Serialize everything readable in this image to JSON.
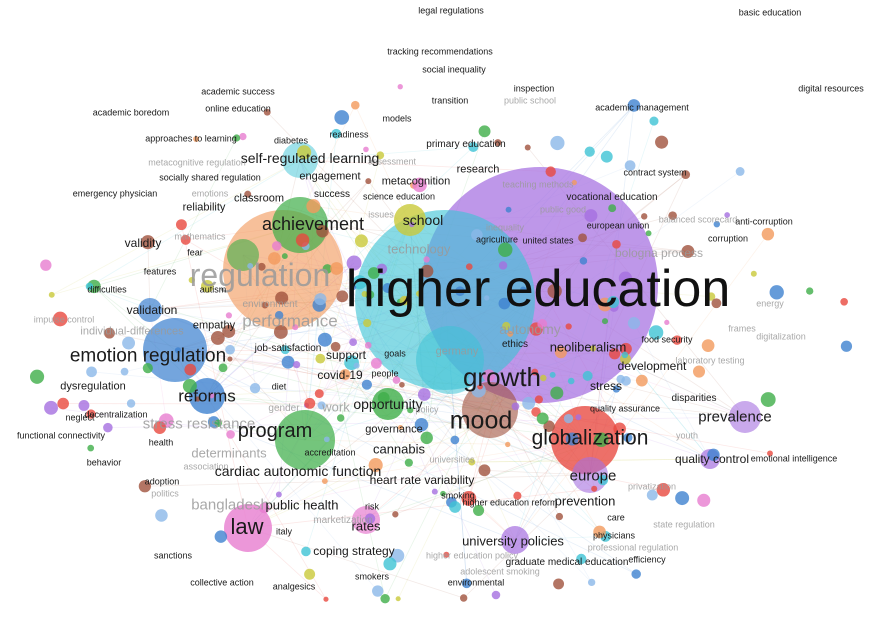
{
  "map": {
    "clusters": {
      "red": "#e8483f",
      "green": "#3fae49",
      "blue": "#3f82d0",
      "yellow": "#c9c93a",
      "purple": "#a56fe0",
      "cyan": "#3ec3d5",
      "orange": "#f29a5c",
      "brown": "#a0523d",
      "pink": "#e77dd0",
      "lightblue": "#8bb8e8",
      "grey": "#9a9a9a"
    },
    "terms": [
      {
        "label": "legal regulations",
        "cluster": "grey"
      },
      {
        "label": "basic education",
        "cluster": "grey"
      },
      {
        "label": "tracking recommendations",
        "cluster": "grey"
      },
      {
        "label": "social inequality",
        "cluster": "grey"
      },
      {
        "label": "digital resources",
        "cluster": "grey"
      },
      {
        "label": "academic success",
        "cluster": "grey"
      },
      {
        "label": "inspection",
        "cluster": "grey"
      },
      {
        "label": "public school",
        "cluster": "grey"
      },
      {
        "label": "transition",
        "cluster": "grey"
      },
      {
        "label": "online education",
        "cluster": "grey"
      },
      {
        "label": "academic management",
        "cluster": "grey"
      },
      {
        "label": "academic boredom",
        "cluster": "grey"
      },
      {
        "label": "models",
        "cluster": "grey"
      },
      {
        "label": "approaches to learning",
        "cluster": "grey"
      },
      {
        "label": "diabetes",
        "cluster": "grey"
      },
      {
        "label": "readiness",
        "cluster": "grey"
      },
      {
        "label": "primary education",
        "cluster": "grey"
      },
      {
        "label": "self-regulated learning",
        "cluster": "grey"
      },
      {
        "label": "metacognitive regulation",
        "cluster": "grey"
      },
      {
        "label": "assessment",
        "cluster": "grey"
      },
      {
        "label": "research",
        "cluster": "grey"
      },
      {
        "label": "socially shared regulation",
        "cluster": "grey"
      },
      {
        "label": "engagement",
        "cluster": "grey"
      },
      {
        "label": "metacognition",
        "cluster": "grey"
      },
      {
        "label": "teaching methods",
        "cluster": "grey"
      },
      {
        "label": "contract system",
        "cluster": "grey"
      },
      {
        "label": "emergency physician",
        "cluster": "grey"
      },
      {
        "label": "emotions",
        "cluster": "grey"
      },
      {
        "label": "success",
        "cluster": "grey"
      },
      {
        "label": "science education",
        "cluster": "grey"
      },
      {
        "label": "vocational education",
        "cluster": "grey"
      },
      {
        "label": "reliability",
        "cluster": "grey"
      },
      {
        "label": "classroom",
        "cluster": "grey"
      },
      {
        "label": "public good",
        "cluster": "grey"
      },
      {
        "label": "balanced scorecard",
        "cluster": "grey"
      },
      {
        "label": "anti-corruption",
        "cluster": "grey"
      },
      {
        "label": "achievement",
        "cluster": "grey"
      },
      {
        "label": "issues",
        "cluster": "grey"
      },
      {
        "label": "school",
        "cluster": "grey"
      },
      {
        "label": "inequality",
        "cluster": "grey"
      },
      {
        "label": "european union",
        "cluster": "grey"
      },
      {
        "label": "mathematics",
        "cluster": "grey"
      },
      {
        "label": "corruption",
        "cluster": "grey"
      },
      {
        "label": "validity",
        "cluster": "grey"
      },
      {
        "label": "agriculture",
        "cluster": "grey"
      },
      {
        "label": "united states",
        "cluster": "grey"
      },
      {
        "label": "technology",
        "cluster": "grey"
      },
      {
        "label": "fear",
        "cluster": "grey"
      },
      {
        "label": "bologna process",
        "cluster": "grey"
      },
      {
        "label": "features",
        "cluster": "grey"
      },
      {
        "label": "regulation",
        "cluster": "grey"
      },
      {
        "label": "higher education",
        "cluster": "grey"
      },
      {
        "label": "difficulties",
        "cluster": "grey"
      },
      {
        "label": "autism",
        "cluster": "grey"
      },
      {
        "label": "energy",
        "cluster": "grey"
      },
      {
        "label": "environment",
        "cluster": "grey"
      },
      {
        "label": "validation",
        "cluster": "grey"
      },
      {
        "label": "impulse control",
        "cluster": "grey"
      },
      {
        "label": "performance",
        "cluster": "grey"
      },
      {
        "label": "autonomy",
        "cluster": "grey"
      },
      {
        "label": "individual-differences",
        "cluster": "grey"
      },
      {
        "label": "empathy",
        "cluster": "grey"
      },
      {
        "label": "frames",
        "cluster": "grey"
      },
      {
        "label": "digitalization",
        "cluster": "grey"
      },
      {
        "label": "food security",
        "cluster": "grey"
      },
      {
        "label": "ethics",
        "cluster": "grey"
      },
      {
        "label": "neoliberalism",
        "cluster": "grey"
      },
      {
        "label": "job-satisfaction",
        "cluster": "grey"
      },
      {
        "label": "emotion regulation",
        "cluster": "grey"
      },
      {
        "label": "support",
        "cluster": "grey"
      },
      {
        "label": "goals",
        "cluster": "grey"
      },
      {
        "label": "germany",
        "cluster": "grey"
      },
      {
        "label": "laboratory testing",
        "cluster": "grey"
      },
      {
        "label": "development",
        "cluster": "grey"
      },
      {
        "label": "covid-19",
        "cluster": "grey"
      },
      {
        "label": "people",
        "cluster": "grey"
      },
      {
        "label": "dysregulation",
        "cluster": "grey"
      },
      {
        "label": "diet",
        "cluster": "grey"
      },
      {
        "label": "growth",
        "cluster": "grey"
      },
      {
        "label": "stress",
        "cluster": "grey"
      },
      {
        "label": "reforms",
        "cluster": "grey"
      },
      {
        "label": "disparities",
        "cluster": "grey"
      },
      {
        "label": "gender",
        "cluster": "grey"
      },
      {
        "label": "work",
        "cluster": "grey"
      },
      {
        "label": "opportunity",
        "cluster": "grey"
      },
      {
        "label": "policy",
        "cluster": "grey"
      },
      {
        "label": "mood",
        "cluster": "grey"
      },
      {
        "label": "neglect",
        "cluster": "grey"
      },
      {
        "label": "decentralization",
        "cluster": "grey"
      },
      {
        "label": "quality assurance",
        "cluster": "grey"
      },
      {
        "label": "prevalence",
        "cluster": "grey"
      },
      {
        "label": "stress resistance",
        "cluster": "grey"
      },
      {
        "label": "functional connectivity",
        "cluster": "grey"
      },
      {
        "label": "health",
        "cluster": "grey"
      },
      {
        "label": "program",
        "cluster": "grey"
      },
      {
        "label": "governance",
        "cluster": "grey"
      },
      {
        "label": "globalization",
        "cluster": "grey"
      },
      {
        "label": "youth",
        "cluster": "grey"
      },
      {
        "label": "cannabis",
        "cluster": "grey"
      },
      {
        "label": "accreditation",
        "cluster": "grey"
      },
      {
        "label": "quality control",
        "cluster": "grey"
      },
      {
        "label": "emotional intelligence",
        "cluster": "grey"
      },
      {
        "label": "behavior",
        "cluster": "grey"
      },
      {
        "label": "determinants",
        "cluster": "grey"
      },
      {
        "label": "association",
        "cluster": "grey"
      },
      {
        "label": "universities",
        "cluster": "grey"
      },
      {
        "label": "cardiac autonomic function",
        "cluster": "grey"
      },
      {
        "label": "europe",
        "cluster": "grey"
      },
      {
        "label": "adoption",
        "cluster": "grey"
      },
      {
        "label": "heart rate variability",
        "cluster": "grey"
      },
      {
        "label": "privatization",
        "cluster": "grey"
      },
      {
        "label": "politics",
        "cluster": "grey"
      },
      {
        "label": "smoking",
        "cluster": "grey"
      },
      {
        "label": "prevention",
        "cluster": "grey"
      },
      {
        "label": "bangladesh",
        "cluster": "grey"
      },
      {
        "label": "public health",
        "cluster": "grey"
      },
      {
        "label": "higher education reform",
        "cluster": "grey"
      },
      {
        "label": "risk",
        "cluster": "grey"
      },
      {
        "label": "care",
        "cluster": "grey"
      },
      {
        "label": "law",
        "cluster": "grey"
      },
      {
        "label": "rates",
        "cluster": "grey"
      },
      {
        "label": "marketization",
        "cluster": "grey"
      },
      {
        "label": "italy",
        "cluster": "grey"
      },
      {
        "label": "state regulation",
        "cluster": "grey"
      },
      {
        "label": "physicians",
        "cluster": "grey"
      },
      {
        "label": "university policies",
        "cluster": "grey"
      },
      {
        "label": "coping strategy",
        "cluster": "grey"
      },
      {
        "label": "professional regulation",
        "cluster": "grey"
      },
      {
        "label": "sanctions",
        "cluster": "grey"
      },
      {
        "label": "higher education policy",
        "cluster": "grey"
      },
      {
        "label": "efficiency",
        "cluster": "grey"
      },
      {
        "label": "graduate medical education",
        "cluster": "grey"
      },
      {
        "label": "adolescent smoking",
        "cluster": "grey"
      },
      {
        "label": "smokers",
        "cluster": "grey"
      },
      {
        "label": "collective action",
        "cluster": "grey"
      },
      {
        "label": "analgesics",
        "cluster": "grey"
      },
      {
        "label": "environmental",
        "cluster": "grey"
      }
    ]
  }
}
